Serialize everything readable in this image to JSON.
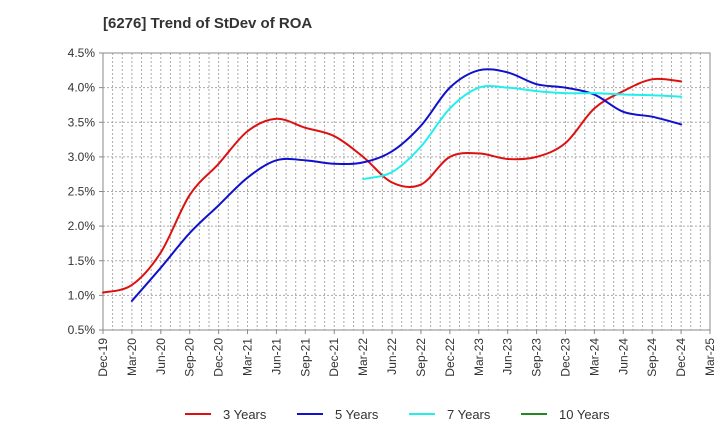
{
  "chart_data": {
    "type": "line",
    "title": "[6276]  Trend of StDev of ROA",
    "xlabel": "",
    "ylabel": "",
    "x": [
      "Dec-19",
      "Mar-20",
      "Jun-20",
      "Sep-20",
      "Dec-20",
      "Mar-21",
      "Jun-21",
      "Sep-21",
      "Dec-21",
      "Mar-22",
      "Jun-22",
      "Sep-22",
      "Dec-22",
      "Mar-23",
      "Jun-23",
      "Sep-23",
      "Dec-23",
      "Mar-24",
      "Jun-24",
      "Sep-24",
      "Dec-24",
      "Mar-25"
    ],
    "x_ticks": [
      "Dec-19",
      "Mar-20",
      "Jun-20",
      "Sep-20",
      "Dec-20",
      "Mar-21",
      "Jun-21",
      "Sep-21",
      "Dec-21",
      "Mar-22",
      "Jun-22",
      "Sep-22",
      "Dec-22",
      "Mar-23",
      "Jun-23",
      "Sep-23",
      "Dec-23",
      "Mar-24",
      "Jun-24",
      "Sep-24",
      "Dec-24",
      "Mar-25"
    ],
    "y_ticks": [
      "0.5%",
      "1.0%",
      "1.5%",
      "2.0%",
      "2.5%",
      "3.0%",
      "3.5%",
      "4.0%",
      "4.5%"
    ],
    "ylim": [
      0.5,
      4.5
    ],
    "grid": true,
    "legend_position": "bottom",
    "series": [
      {
        "name": "3 Years",
        "color": "#dd1111",
        "values": [
          1.04,
          1.15,
          1.62,
          2.45,
          2.9,
          3.37,
          3.55,
          3.42,
          3.3,
          3.0,
          2.63,
          2.6,
          3.0,
          3.05,
          2.97,
          3.0,
          3.2,
          3.7,
          3.95,
          4.12,
          4.09,
          null
        ]
      },
      {
        "name": "5 Years",
        "color": "#1111cc",
        "values": [
          null,
          0.92,
          1.4,
          1.9,
          2.3,
          2.7,
          2.95,
          2.95,
          2.9,
          2.92,
          3.08,
          3.45,
          4.0,
          4.25,
          4.22,
          4.05,
          4.0,
          3.9,
          3.65,
          3.58,
          3.47,
          null
        ]
      },
      {
        "name": "7 Years",
        "color": "#22eeee",
        "values": [
          null,
          null,
          null,
          null,
          null,
          null,
          null,
          null,
          null,
          2.68,
          2.78,
          3.15,
          3.7,
          4.0,
          4.0,
          3.95,
          3.92,
          3.92,
          3.9,
          3.89,
          3.87,
          null
        ]
      },
      {
        "name": "10 Years",
        "color": "#228822",
        "values": [
          null,
          null,
          null,
          null,
          null,
          null,
          null,
          null,
          null,
          null,
          null,
          null,
          null,
          null,
          null,
          null,
          null,
          null,
          null,
          null,
          null,
          null
        ]
      }
    ]
  }
}
